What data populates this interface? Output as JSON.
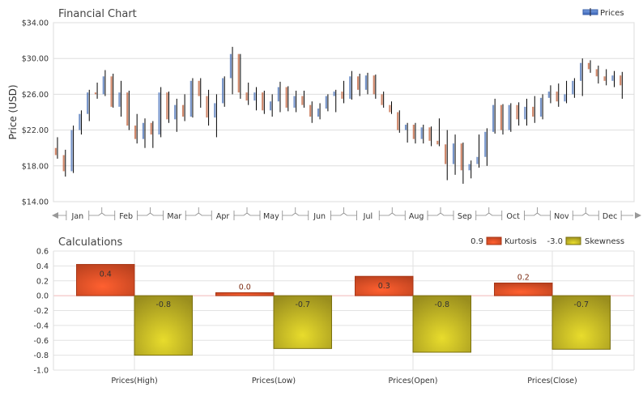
{
  "chart_data": [
    {
      "type": "candlestick",
      "title": "Financial Chart",
      "ylabel": "Price (USD)",
      "xlabel": "",
      "legend": {
        "entries": [
          "Prices"
        ],
        "placement": "top-right"
      },
      "ylim": [
        14,
        34
      ],
      "yticks": [
        "$14.00",
        "$18.00",
        "$22.00",
        "$26.00",
        "$30.00",
        "$34.00"
      ],
      "ytick_values": [
        14,
        18,
        22,
        26,
        30,
        34
      ],
      "xticks": [
        "Jan",
        "Feb",
        "Mar",
        "Apr",
        "May",
        "Jun",
        "Jul",
        "Aug",
        "Sep",
        "Oct",
        "Nov",
        "Dec"
      ],
      "grid": "horizontal",
      "colors": {
        "up": "#4a72b8",
        "down": "#c0603a",
        "wick": "#000000"
      },
      "ohlc_columns": [
        "date",
        "open",
        "high",
        "low",
        "close"
      ],
      "ohlc": [
        [
          "01-02",
          20.0,
          21.2,
          18.8,
          19.2
        ],
        [
          "01-07",
          19.2,
          19.8,
          16.8,
          17.4
        ],
        [
          "01-12",
          17.4,
          22.5,
          17.2,
          22.0
        ],
        [
          "01-17",
          22.0,
          24.2,
          21.5,
          23.8
        ],
        [
          "01-22",
          23.8,
          26.5,
          23.0,
          26.2
        ],
        [
          "01-27",
          26.2,
          27.3,
          25.5,
          26.0
        ],
        [
          "02-01",
          26.0,
          28.7,
          25.8,
          28.0
        ],
        [
          "02-06",
          28.0,
          28.3,
          24.5,
          24.6
        ],
        [
          "02-11",
          24.6,
          27.5,
          23.5,
          26.2
        ],
        [
          "02-16",
          26.2,
          26.4,
          22.0,
          22.5
        ],
        [
          "02-21",
          22.5,
          23.8,
          20.5,
          21.0
        ],
        [
          "02-26",
          21.0,
          23.3,
          20.0,
          22.8
        ],
        [
          "03-03",
          22.8,
          23.0,
          20.0,
          21.5
        ],
        [
          "03-08",
          21.5,
          26.8,
          21.2,
          26.2
        ],
        [
          "03-13",
          26.2,
          26.3,
          22.8,
          23.2
        ],
        [
          "03-18",
          23.2,
          25.5,
          21.8,
          24.8
        ],
        [
          "03-23",
          24.8,
          26.0,
          23.0,
          23.5
        ],
        [
          "03-28",
          23.5,
          27.8,
          23.4,
          27.5
        ],
        [
          "04-02",
          27.5,
          27.8,
          24.5,
          25.8
        ],
        [
          "04-07",
          25.8,
          26.5,
          22.5,
          23.4
        ],
        [
          "04-12",
          23.4,
          26.0,
          21.2,
          25.0
        ],
        [
          "04-17",
          25.0,
          28.0,
          24.6,
          27.8
        ],
        [
          "04-22",
          27.8,
          31.3,
          26.0,
          30.5
        ],
        [
          "04-27",
          30.5,
          30.5,
          25.5,
          26.2
        ],
        [
          "05-02",
          26.2,
          27.3,
          24.8,
          25.3
        ],
        [
          "05-07",
          25.3,
          26.8,
          24.2,
          26.2
        ],
        [
          "05-12",
          26.2,
          26.4,
          23.8,
          24.2
        ],
        [
          "05-17",
          24.2,
          26.0,
          23.5,
          25.2
        ],
        [
          "05-22",
          25.2,
          27.4,
          24.0,
          26.8
        ],
        [
          "05-27",
          26.8,
          26.9,
          24.1,
          24.5
        ],
        [
          "06-01",
          24.5,
          26.4,
          24.0,
          25.8
        ],
        [
          "06-06",
          25.8,
          26.4,
          24.5,
          24.8
        ],
        [
          "06-11",
          24.8,
          25.2,
          22.8,
          23.5
        ],
        [
          "06-16",
          23.5,
          25.0,
          23.2,
          24.4
        ],
        [
          "06-21",
          24.4,
          26.0,
          24.1,
          25.8
        ],
        [
          "06-26",
          25.8,
          26.5,
          24.0,
          26.3
        ],
        [
          "07-01",
          26.3,
          27.5,
          25.0,
          25.5
        ],
        [
          "07-06",
          25.5,
          28.6,
          25.4,
          28.0
        ],
        [
          "07-11",
          28.0,
          28.3,
          25.8,
          26.5
        ],
        [
          "07-16",
          26.5,
          28.4,
          26.0,
          28.1
        ],
        [
          "07-21",
          28.1,
          28.2,
          25.5,
          26.0
        ],
        [
          "07-26",
          26.0,
          26.3,
          24.5,
          24.8
        ],
        [
          "07-31",
          24.8,
          25.2,
          23.8,
          24.0
        ],
        [
          "08-05",
          24.0,
          24.2,
          21.7,
          22.0
        ],
        [
          "08-10",
          22.0,
          22.8,
          20.6,
          22.6
        ],
        [
          "08-15",
          22.6,
          22.8,
          20.5,
          21.0
        ],
        [
          "08-20",
          21.0,
          22.6,
          20.5,
          22.3
        ],
        [
          "08-25",
          22.3,
          22.4,
          20.2,
          20.8
        ],
        [
          "08-30",
          20.8,
          23.3,
          20.2,
          20.4
        ],
        [
          "09-04",
          20.4,
          22.0,
          16.4,
          18.2
        ],
        [
          "09-09",
          18.2,
          21.5,
          17.0,
          20.5
        ],
        [
          "09-14",
          20.5,
          20.6,
          16.0,
          17.5
        ],
        [
          "09-19",
          17.5,
          18.6,
          16.6,
          18.2
        ],
        [
          "09-24",
          18.2,
          21.5,
          17.8,
          19.0
        ],
        [
          "09-29",
          19.0,
          22.2,
          18.0,
          21.8
        ],
        [
          "10-04",
          21.8,
          25.5,
          21.6,
          24.8
        ],
        [
          "10-09",
          24.8,
          24.9,
          21.5,
          22.0
        ],
        [
          "10-14",
          22.0,
          25.0,
          21.8,
          24.8
        ],
        [
          "10-19",
          24.8,
          25.1,
          22.5,
          23.2
        ],
        [
          "10-24",
          23.2,
          25.5,
          22.5,
          24.6
        ],
        [
          "10-29",
          24.6,
          25.8,
          22.8,
          23.5
        ],
        [
          "11-03",
          23.5,
          26.0,
          23.2,
          25.6
        ],
        [
          "11-08",
          25.6,
          27.0,
          25.0,
          26.3
        ],
        [
          "11-13",
          26.3,
          27.2,
          24.6,
          25.2
        ],
        [
          "11-18",
          25.2,
          27.5,
          25.0,
          26.0
        ],
        [
          "11-23",
          26.0,
          27.8,
          25.6,
          27.5
        ],
        [
          "11-28",
          27.5,
          30.0,
          25.8,
          29.5
        ],
        [
          "12-03",
          29.5,
          29.8,
          28.4,
          28.8
        ],
        [
          "12-08",
          28.8,
          29.2,
          27.2,
          28.0
        ],
        [
          "12-13",
          28.0,
          28.8,
          27.0,
          27.5
        ],
        [
          "12-18",
          27.5,
          28.6,
          26.8,
          28.1
        ],
        [
          "12-23",
          28.1,
          28.5,
          25.5,
          27.0
        ]
      ]
    },
    {
      "type": "bar",
      "title": "Calculations",
      "xlabel": "",
      "ylabel": "",
      "ylim": [
        -1.0,
        0.6
      ],
      "yticks": [
        "-1.0",
        "-0.8",
        "-0.6",
        "-0.4",
        "-0.2",
        "0.0",
        "0.2",
        "0.4",
        "0.6"
      ],
      "ytick_values": [
        -1.0,
        -0.8,
        -0.6,
        -0.4,
        -0.2,
        0.0,
        0.2,
        0.4,
        0.6
      ],
      "grid": "both",
      "categories": [
        "Prices(High)",
        "Prices(Low)",
        "Prices(Open)",
        "Prices(Close)"
      ],
      "legend": {
        "placement": "top-right",
        "entries": [
          {
            "name": "Kurtosis",
            "value_label": "0.9"
          },
          {
            "name": "Skewness",
            "value_label": "-3.0"
          }
        ]
      },
      "series": [
        {
          "name": "Kurtosis",
          "color": "#e8502a",
          "values": [
            0.42,
            0.04,
            0.26,
            0.17
          ],
          "labels": [
            "0.4",
            "0.0",
            "0.3",
            "0.2"
          ]
        },
        {
          "name": "Skewness",
          "color": "#d4c62a",
          "values": [
            -0.8,
            -0.71,
            -0.76,
            -0.72
          ],
          "labels": [
            "-0.8",
            "-0.7",
            "-0.8",
            "-0.7"
          ]
        }
      ]
    }
  ]
}
